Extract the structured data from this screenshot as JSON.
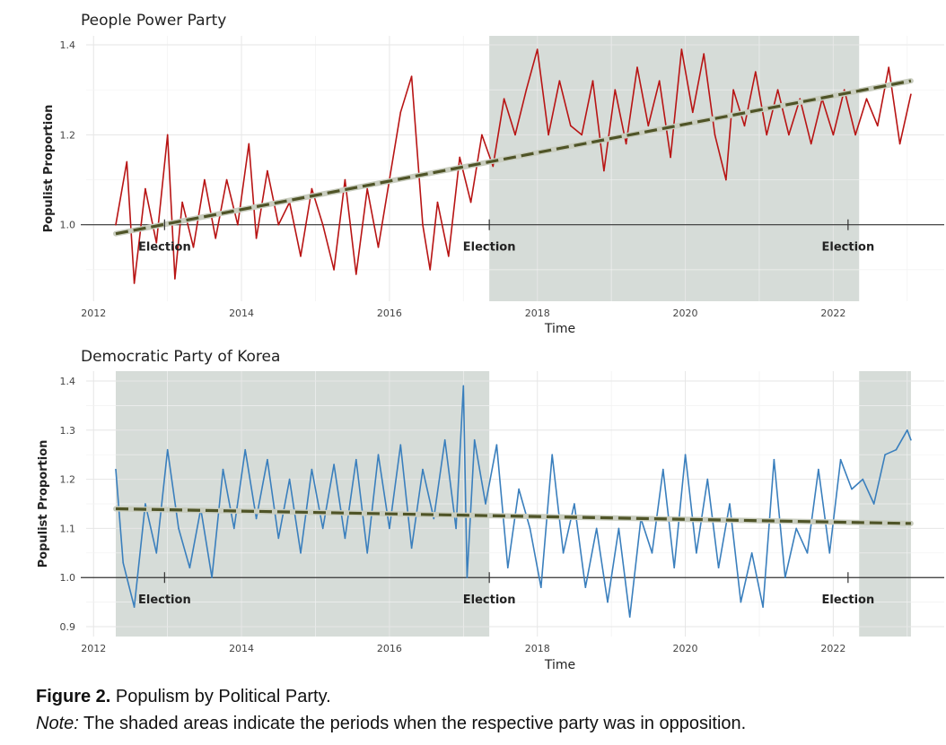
{
  "chart_data": [
    {
      "type": "line",
      "title": "People Power Party",
      "xlabel": "Time",
      "ylabel": "Populist Proportion",
      "xlim": [
        2011.9,
        2023.5
      ],
      "ylim": [
        0.83,
        1.42
      ],
      "x_ticks": [
        2012,
        2014,
        2016,
        2018,
        2020,
        2022
      ],
      "x_tick_labels": [
        "2012",
        "2014",
        "2016",
        "2018",
        "2020",
        "2022"
      ],
      "y_ticks": [
        1.0,
        1.2,
        1.4
      ],
      "y_tick_labels": [
        "1.0",
        "1.2",
        "1.4"
      ],
      "reference_line": 1.0,
      "grid": true,
      "shaded_periods": [
        [
          2017.35,
          2022.35
        ]
      ],
      "elections": [
        {
          "x": 2012.96,
          "label": "Election"
        },
        {
          "x": 2017.35,
          "label": "Election"
        },
        {
          "x": 2022.2,
          "label": "Election"
        }
      ],
      "series": [
        {
          "color": "#b81414",
          "style": "solid",
          "x": [
            2012.3,
            2012.45,
            2012.55,
            2012.7,
            2012.85,
            2013.0,
            2013.1,
            2013.2,
            2013.35,
            2013.5,
            2013.65,
            2013.8,
            2013.95,
            2014.1,
            2014.2,
            2014.35,
            2014.5,
            2014.65,
            2014.8,
            2014.95,
            2015.1,
            2015.25,
            2015.4,
            2015.55,
            2015.7,
            2015.85,
            2016.0,
            2016.15,
            2016.3,
            2016.45,
            2016.55,
            2016.65,
            2016.8,
            2016.95,
            2017.1,
            2017.25,
            2017.4,
            2017.55,
            2017.7,
            2017.85,
            2018.0,
            2018.15,
            2018.3,
            2018.45,
            2018.6,
            2018.75,
            2018.9,
            2019.05,
            2019.2,
            2019.35,
            2019.5,
            2019.65,
            2019.8,
            2019.95,
            2020.1,
            2020.25,
            2020.4,
            2020.55,
            2020.65,
            2020.8,
            2020.95,
            2021.1,
            2021.25,
            2021.4,
            2021.55,
            2021.7,
            2021.85,
            2022.0,
            2022.15,
            2022.3,
            2022.45,
            2022.6,
            2022.75,
            2022.9,
            2023.05
          ],
          "y": [
            1.0,
            1.14,
            0.87,
            1.08,
            0.96,
            1.2,
            0.88,
            1.05,
            0.95,
            1.1,
            0.97,
            1.1,
            1.0,
            1.18,
            0.97,
            1.12,
            1.0,
            1.05,
            0.93,
            1.08,
            1.0,
            0.9,
            1.1,
            0.89,
            1.08,
            0.95,
            1.1,
            1.25,
            1.33,
            1.0,
            0.9,
            1.05,
            0.93,
            1.15,
            1.05,
            1.2,
            1.13,
            1.28,
            1.2,
            1.3,
            1.39,
            1.2,
            1.32,
            1.22,
            1.2,
            1.32,
            1.12,
            1.3,
            1.18,
            1.35,
            1.22,
            1.32,
            1.15,
            1.39,
            1.25,
            1.38,
            1.2,
            1.1,
            1.3,
            1.22,
            1.34,
            1.2,
            1.3,
            1.2,
            1.28,
            1.18,
            1.28,
            1.2,
            1.3,
            1.2,
            1.28,
            1.22,
            1.35,
            1.18,
            1.29
          ]
        },
        {
          "color": "#4f5427",
          "style": "dashed",
          "trend": true,
          "x": [
            2012.3,
            2023.05
          ],
          "y": [
            0.98,
            1.32
          ]
        }
      ]
    },
    {
      "type": "line",
      "title": "Democratic Party of Korea",
      "xlabel": "Time",
      "ylabel": "Populist Proportion",
      "xlim": [
        2011.9,
        2023.5
      ],
      "ylim": [
        0.88,
        1.42
      ],
      "x_ticks": [
        2012,
        2014,
        2016,
        2018,
        2020,
        2022
      ],
      "x_tick_labels": [
        "2012",
        "2014",
        "2016",
        "2018",
        "2020",
        "2022"
      ],
      "y_ticks": [
        0.9,
        1.0,
        1.1,
        1.2,
        1.3,
        1.4
      ],
      "y_tick_labels": [
        "0.9",
        "1.0",
        "1.1",
        "1.2",
        "1.3",
        "1.4"
      ],
      "reference_line": 1.0,
      "grid": true,
      "shaded_periods": [
        [
          2012.3,
          2017.35
        ],
        [
          2022.35,
          2023.05
        ]
      ],
      "elections": [
        {
          "x": 2012.96,
          "label": "Election"
        },
        {
          "x": 2017.35,
          "label": "Election"
        },
        {
          "x": 2022.2,
          "label": "Election"
        }
      ],
      "series": [
        {
          "color": "#3a7fbd",
          "style": "solid",
          "x": [
            2012.3,
            2012.4,
            2012.55,
            2012.7,
            2012.85,
            2013.0,
            2013.15,
            2013.3,
            2013.45,
            2013.6,
            2013.75,
            2013.9,
            2014.05,
            2014.2,
            2014.35,
            2014.5,
            2014.65,
            2014.8,
            2014.95,
            2015.1,
            2015.25,
            2015.4,
            2015.55,
            2015.7,
            2015.85,
            2016.0,
            2016.15,
            2016.3,
            2016.45,
            2016.6,
            2016.75,
            2016.9,
            2017.0,
            2017.05,
            2017.15,
            2017.3,
            2017.45,
            2017.6,
            2017.75,
            2017.9,
            2018.05,
            2018.2,
            2018.35,
            2018.5,
            2018.65,
            2018.8,
            2018.95,
            2019.1,
            2019.25,
            2019.4,
            2019.55,
            2019.7,
            2019.85,
            2020.0,
            2020.15,
            2020.3,
            2020.45,
            2020.6,
            2020.75,
            2020.9,
            2021.05,
            2021.2,
            2021.35,
            2021.5,
            2021.65,
            2021.8,
            2021.95,
            2022.1,
            2022.25,
            2022.4,
            2022.55,
            2022.7,
            2022.85,
            2023.0,
            2023.05
          ],
          "y": [
            1.22,
            1.03,
            0.94,
            1.15,
            1.05,
            1.26,
            1.1,
            1.02,
            1.14,
            1.0,
            1.22,
            1.1,
            1.26,
            1.12,
            1.24,
            1.08,
            1.2,
            1.05,
            1.22,
            1.1,
            1.23,
            1.08,
            1.24,
            1.05,
            1.25,
            1.1,
            1.27,
            1.06,
            1.22,
            1.12,
            1.28,
            1.1,
            1.39,
            1.0,
            1.28,
            1.15,
            1.27,
            1.02,
            1.18,
            1.1,
            0.98,
            1.25,
            1.05,
            1.15,
            0.98,
            1.1,
            0.95,
            1.1,
            0.92,
            1.12,
            1.05,
            1.22,
            1.02,
            1.25,
            1.05,
            1.2,
            1.02,
            1.15,
            0.95,
            1.05,
            0.94,
            1.24,
            1.0,
            1.1,
            1.05,
            1.22,
            1.05,
            1.24,
            1.18,
            1.2,
            1.15,
            1.25,
            1.26,
            1.3,
            1.28
          ]
        },
        {
          "color": "#4f5427",
          "style": "dashed",
          "trend": true,
          "x": [
            2012.3,
            2023.05
          ],
          "y": [
            1.14,
            1.11
          ]
        }
      ]
    }
  ],
  "caption": {
    "figure_label": "Figure 2.",
    "figure_text": "Populism by Political Party.",
    "note_label": "Note:",
    "note_text": "The shaded areas indicate the periods when the respective party was in opposition."
  }
}
